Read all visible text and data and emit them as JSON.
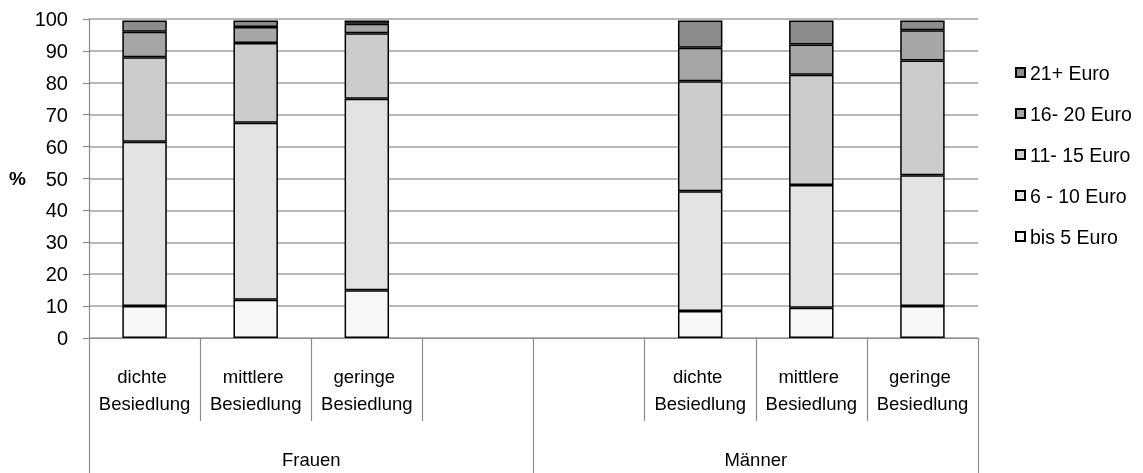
{
  "chart_data": {
    "type": "bar",
    "stacked": true,
    "ylabel": "%",
    "categories": [
      "dichte Besiedlung",
      "mittlere Besiedlung",
      "geringe Besiedlung",
      null,
      null,
      "dichte Besiedlung",
      "mittlere Besiedlung",
      "geringe Besiedlung"
    ],
    "annotations": [
      "Frauen",
      "Männer"
    ],
    "series": [
      {
        "name": "bis 5 Euro",
        "color": "#f7f7f7",
        "values": [
          10,
          12,
          15,
          null,
          null,
          8.5,
          9.5,
          10
        ]
      },
      {
        "name": "6 - 10 Euro",
        "color": "#e3e3e3",
        "values": [
          51.5,
          55.5,
          60,
          null,
          null,
          37.5,
          38.5,
          41
        ]
      },
      {
        "name": "11- 15 Euro",
        "color": "#cccccc",
        "values": [
          26.5,
          25,
          20.5,
          null,
          null,
          34.5,
          34.5,
          36
        ]
      },
      {
        "name": "16- 20 Euro",
        "color": "#a6a6a6",
        "values": [
          8,
          5,
          3,
          null,
          null,
          10.5,
          9.5,
          9.5
        ]
      },
      {
        "name": "21+ Euro",
        "color": "#8c8c8c",
        "values": [
          3.5,
          2,
          1,
          null,
          null,
          8.5,
          7.5,
          3
        ]
      }
    ],
    "ylim": [
      0,
      100
    ],
    "yticks": [
      0,
      10,
      20,
      30,
      40,
      50,
      60,
      70,
      80,
      90,
      100
    ],
    "grid": "y",
    "legend": "right"
  }
}
